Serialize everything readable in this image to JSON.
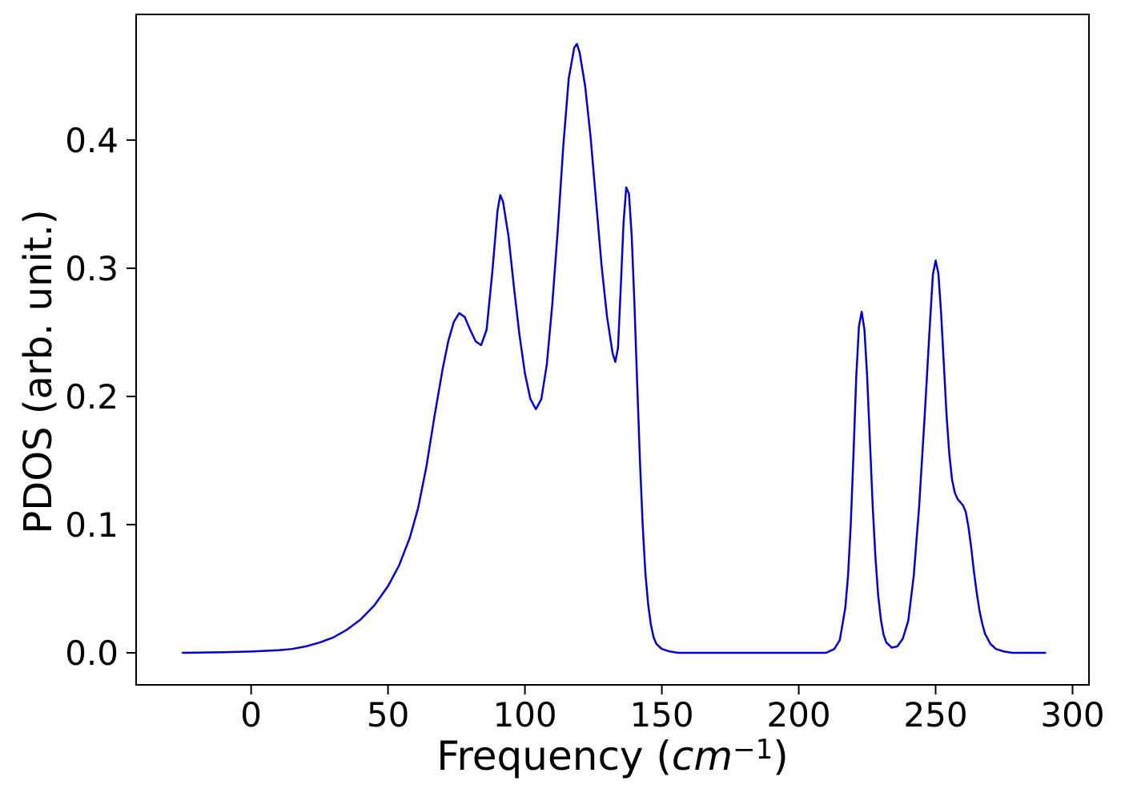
{
  "labels": {
    "xlabel_prefix": "Frequency (",
    "xlabel_unit": "cm",
    "xlabel_exp": "−1",
    "xlabel_suffix": ")",
    "ylabel": "PDOS (arb. unit.)"
  },
  "chart_data": {
    "type": "line",
    "title": "",
    "xlabel": "Frequency (cm^-1)",
    "ylabel": "PDOS (arb. unit.)",
    "line_color": "#0000cd",
    "line_width": 2.5,
    "grid": false,
    "legend": "none",
    "xlim": [
      -42,
      306
    ],
    "ylim": [
      -0.025,
      0.498
    ],
    "xticks": [
      0,
      50,
      100,
      150,
      200,
      250,
      300
    ],
    "xtick_labels": [
      "0",
      "50",
      "100",
      "150",
      "200",
      "250",
      "300"
    ],
    "yticks": [
      0.0,
      0.1,
      0.2,
      0.3,
      0.4
    ],
    "ytick_labels": [
      "0.0",
      "0.1",
      "0.2",
      "0.3",
      "0.4"
    ],
    "series": [
      {
        "name": "PDOS",
        "points": [
          [
            -25,
            0
          ],
          [
            -10,
            0.0005
          ],
          [
            0,
            0.001
          ],
          [
            10,
            0.002
          ],
          [
            15,
            0.003
          ],
          [
            20,
            0.005
          ],
          [
            25,
            0.008
          ],
          [
            30,
            0.012
          ],
          [
            35,
            0.018
          ],
          [
            40,
            0.026
          ],
          [
            45,
            0.037
          ],
          [
            50,
            0.052
          ],
          [
            54,
            0.068
          ],
          [
            58,
            0.09
          ],
          [
            61,
            0.113
          ],
          [
            64,
            0.145
          ],
          [
            67,
            0.185
          ],
          [
            70,
            0.222
          ],
          [
            72,
            0.243
          ],
          [
            74,
            0.258
          ],
          [
            76,
            0.265
          ],
          [
            78,
            0.262
          ],
          [
            80,
            0.252
          ],
          [
            82,
            0.243
          ],
          [
            84,
            0.24
          ],
          [
            86,
            0.252
          ],
          [
            88,
            0.295
          ],
          [
            90,
            0.345
          ],
          [
            91,
            0.357
          ],
          [
            92,
            0.352
          ],
          [
            94,
            0.325
          ],
          [
            96,
            0.285
          ],
          [
            98,
            0.248
          ],
          [
            100,
            0.218
          ],
          [
            102,
            0.198
          ],
          [
            104,
            0.19
          ],
          [
            106,
            0.198
          ],
          [
            108,
            0.225
          ],
          [
            110,
            0.272
          ],
          [
            112,
            0.33
          ],
          [
            114,
            0.395
          ],
          [
            116,
            0.448
          ],
          [
            118,
            0.472
          ],
          [
            119,
            0.475
          ],
          [
            120,
            0.468
          ],
          [
            122,
            0.442
          ],
          [
            124,
            0.402
          ],
          [
            126,
            0.352
          ],
          [
            128,
            0.302
          ],
          [
            130,
            0.262
          ],
          [
            132,
            0.234
          ],
          [
            133,
            0.227
          ],
          [
            134,
            0.238
          ],
          [
            135,
            0.285
          ],
          [
            136,
            0.335
          ],
          [
            137,
            0.363
          ],
          [
            138,
            0.358
          ],
          [
            139,
            0.325
          ],
          [
            140,
            0.272
          ],
          [
            141,
            0.21
          ],
          [
            142,
            0.15
          ],
          [
            143,
            0.1
          ],
          [
            144,
            0.062
          ],
          [
            145,
            0.038
          ],
          [
            146,
            0.022
          ],
          [
            147,
            0.012
          ],
          [
            148,
            0.007
          ],
          [
            150,
            0.003
          ],
          [
            153,
            0.001
          ],
          [
            156,
            0
          ],
          [
            210,
            0
          ],
          [
            213,
            0.003
          ],
          [
            215,
            0.01
          ],
          [
            217,
            0.035
          ],
          [
            218,
            0.06
          ],
          [
            219,
            0.1
          ],
          [
            220,
            0.155
          ],
          [
            221,
            0.215
          ],
          [
            222,
            0.255
          ],
          [
            223,
            0.266
          ],
          [
            224,
            0.252
          ],
          [
            225,
            0.215
          ],
          [
            226,
            0.165
          ],
          [
            227,
            0.115
          ],
          [
            228,
            0.075
          ],
          [
            229,
            0.045
          ],
          [
            230,
            0.026
          ],
          [
            231,
            0.014
          ],
          [
            232,
            0.008
          ],
          [
            234,
            0.004
          ],
          [
            236,
            0.005
          ],
          [
            238,
            0.011
          ],
          [
            240,
            0.025
          ],
          [
            242,
            0.06
          ],
          [
            244,
            0.115
          ],
          [
            246,
            0.185
          ],
          [
            248,
            0.26
          ],
          [
            249,
            0.295
          ],
          [
            250,
            0.306
          ],
          [
            251,
            0.296
          ],
          [
            252,
            0.265
          ],
          [
            253,
            0.225
          ],
          [
            254,
            0.185
          ],
          [
            255,
            0.155
          ],
          [
            256,
            0.135
          ],
          [
            257,
            0.125
          ],
          [
            258,
            0.12
          ],
          [
            260,
            0.115
          ],
          [
            261,
            0.11
          ],
          [
            262,
            0.098
          ],
          [
            263,
            0.082
          ],
          [
            264,
            0.063
          ],
          [
            265,
            0.047
          ],
          [
            266,
            0.033
          ],
          [
            267,
            0.023
          ],
          [
            268,
            0.015
          ],
          [
            270,
            0.007
          ],
          [
            272,
            0.003
          ],
          [
            275,
            0.001
          ],
          [
            278,
            0
          ],
          [
            290,
            0
          ]
        ]
      }
    ]
  }
}
